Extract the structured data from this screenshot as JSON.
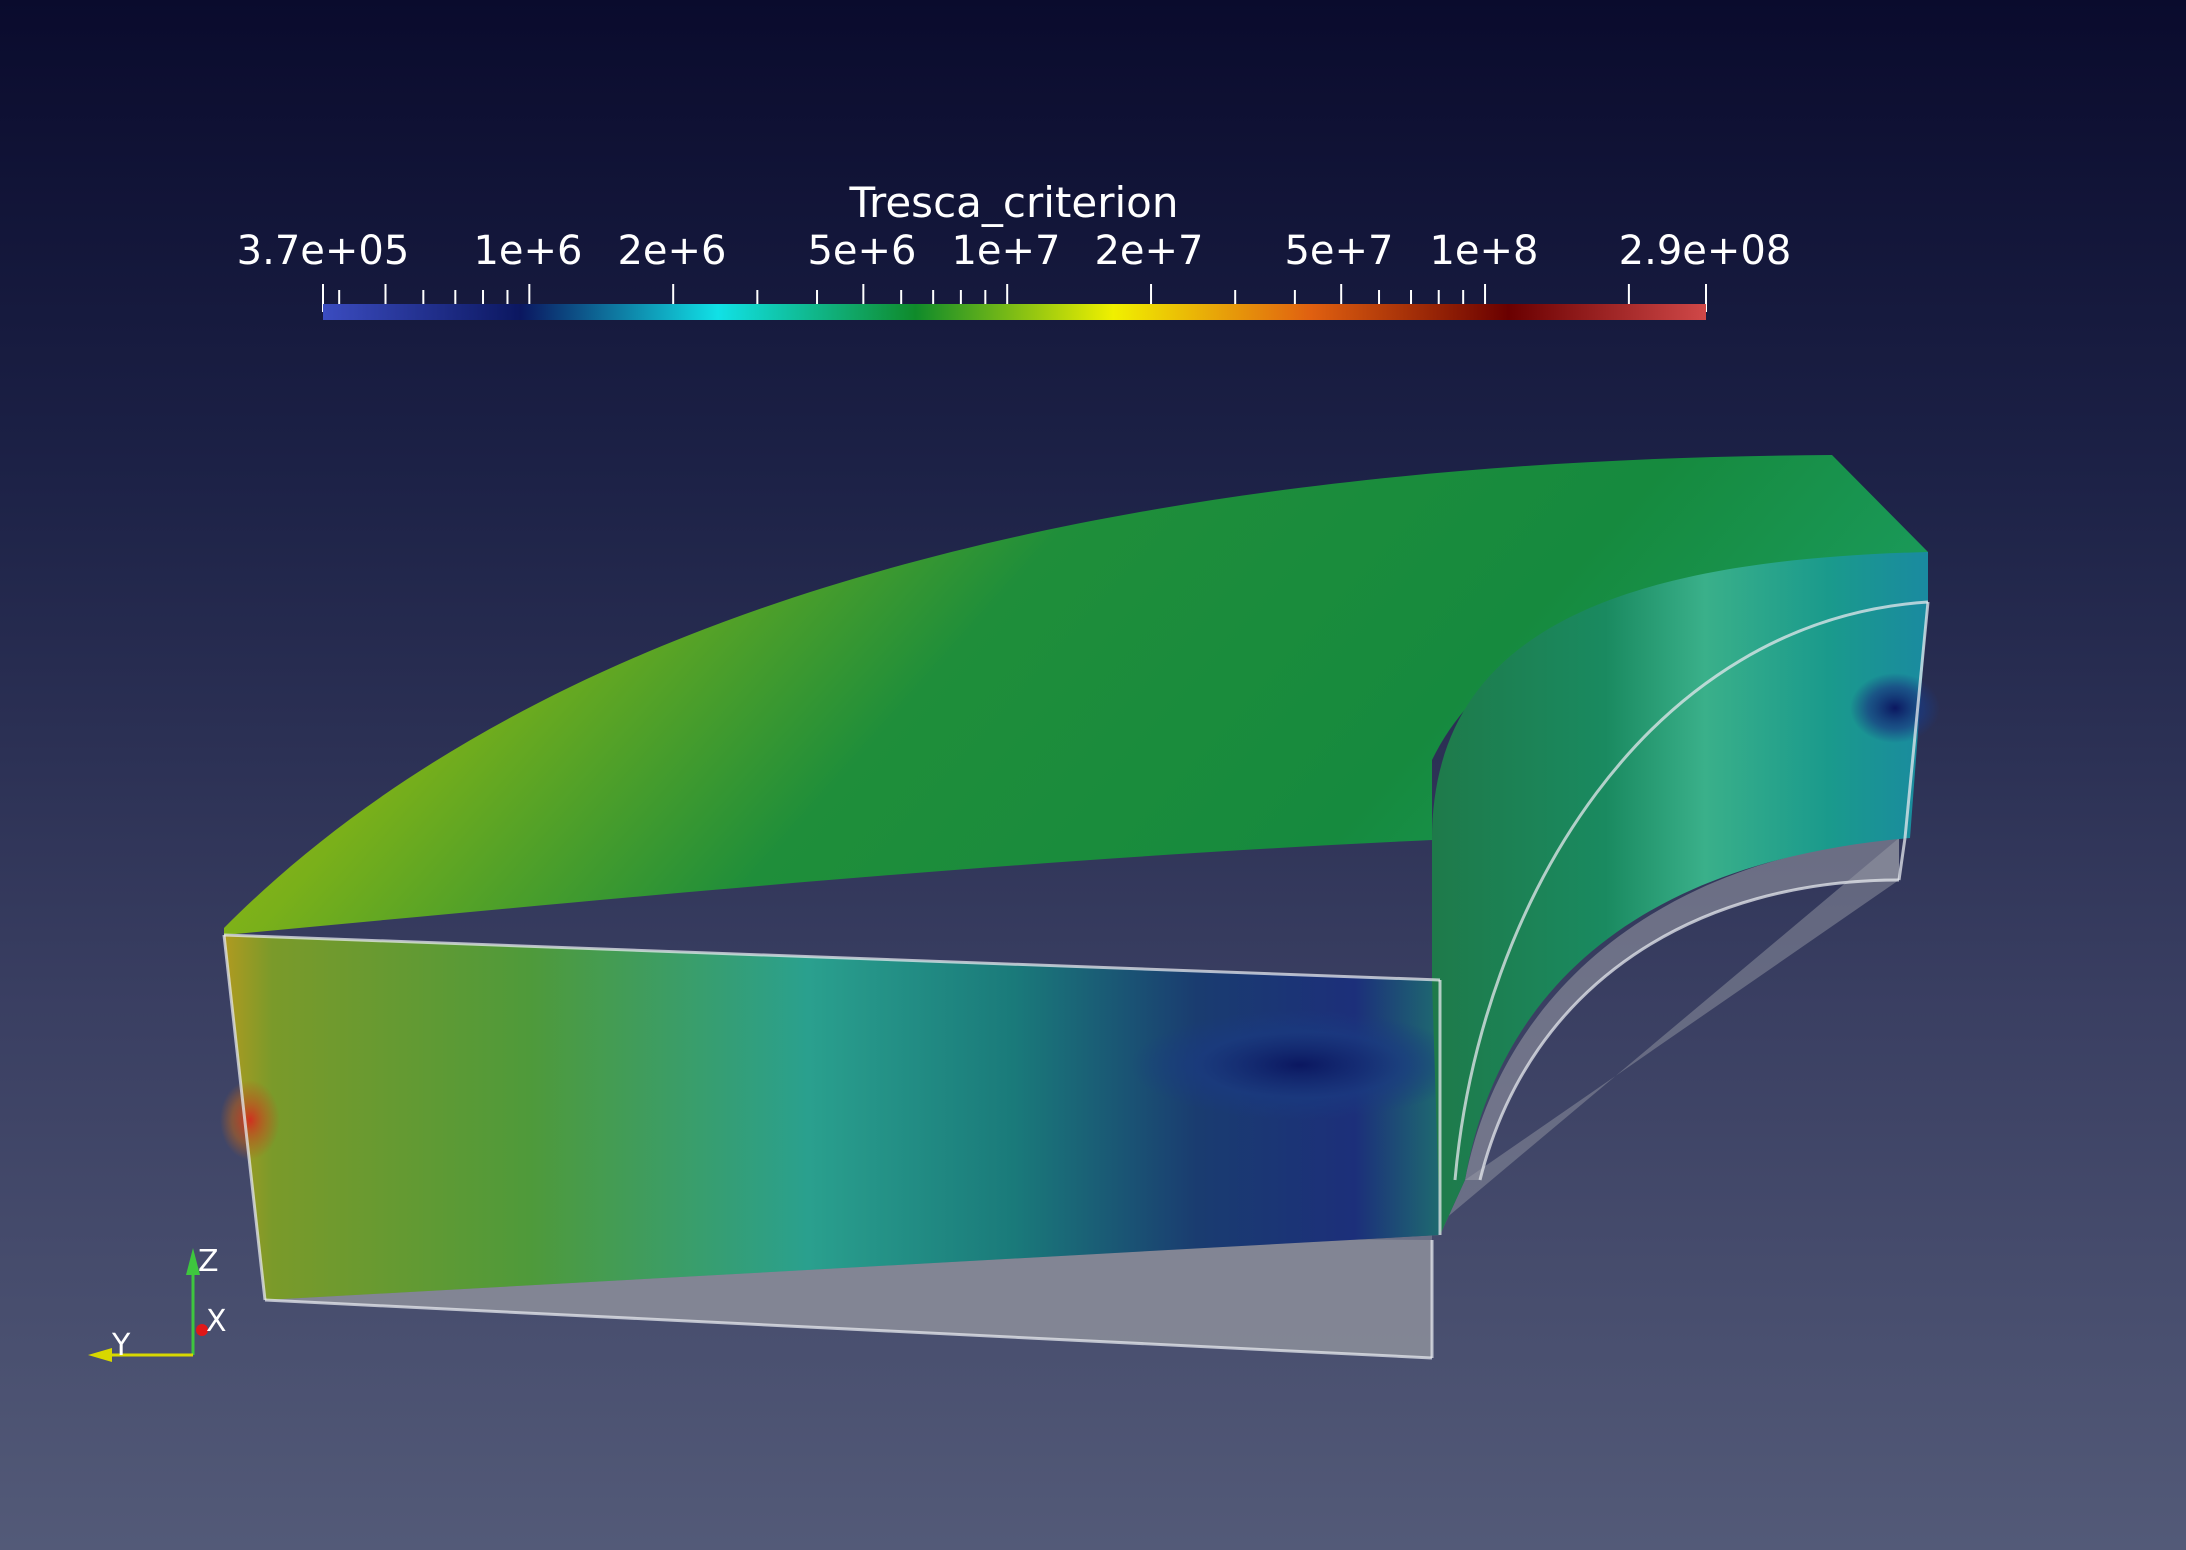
{
  "colorbar": {
    "title": "Tresca_criterion",
    "labels": [
      "3.7e+05",
      "1e+6",
      "2e+6",
      "5e+6",
      "1e+7",
      "2e+7",
      "5e+7",
      "1e+8",
      "2.9e+08"
    ],
    "scale": "log",
    "range": [
      370000,
      290000000
    ],
    "colors": [
      "#3b4cc0",
      "#0b1760",
      "#11e1e6",
      "#0f8a2a",
      "#f0f000",
      "#e06010",
      "#6a0000",
      "#d04848"
    ]
  },
  "axes": {
    "z": "Z",
    "x": "X",
    "y": "Y"
  }
}
